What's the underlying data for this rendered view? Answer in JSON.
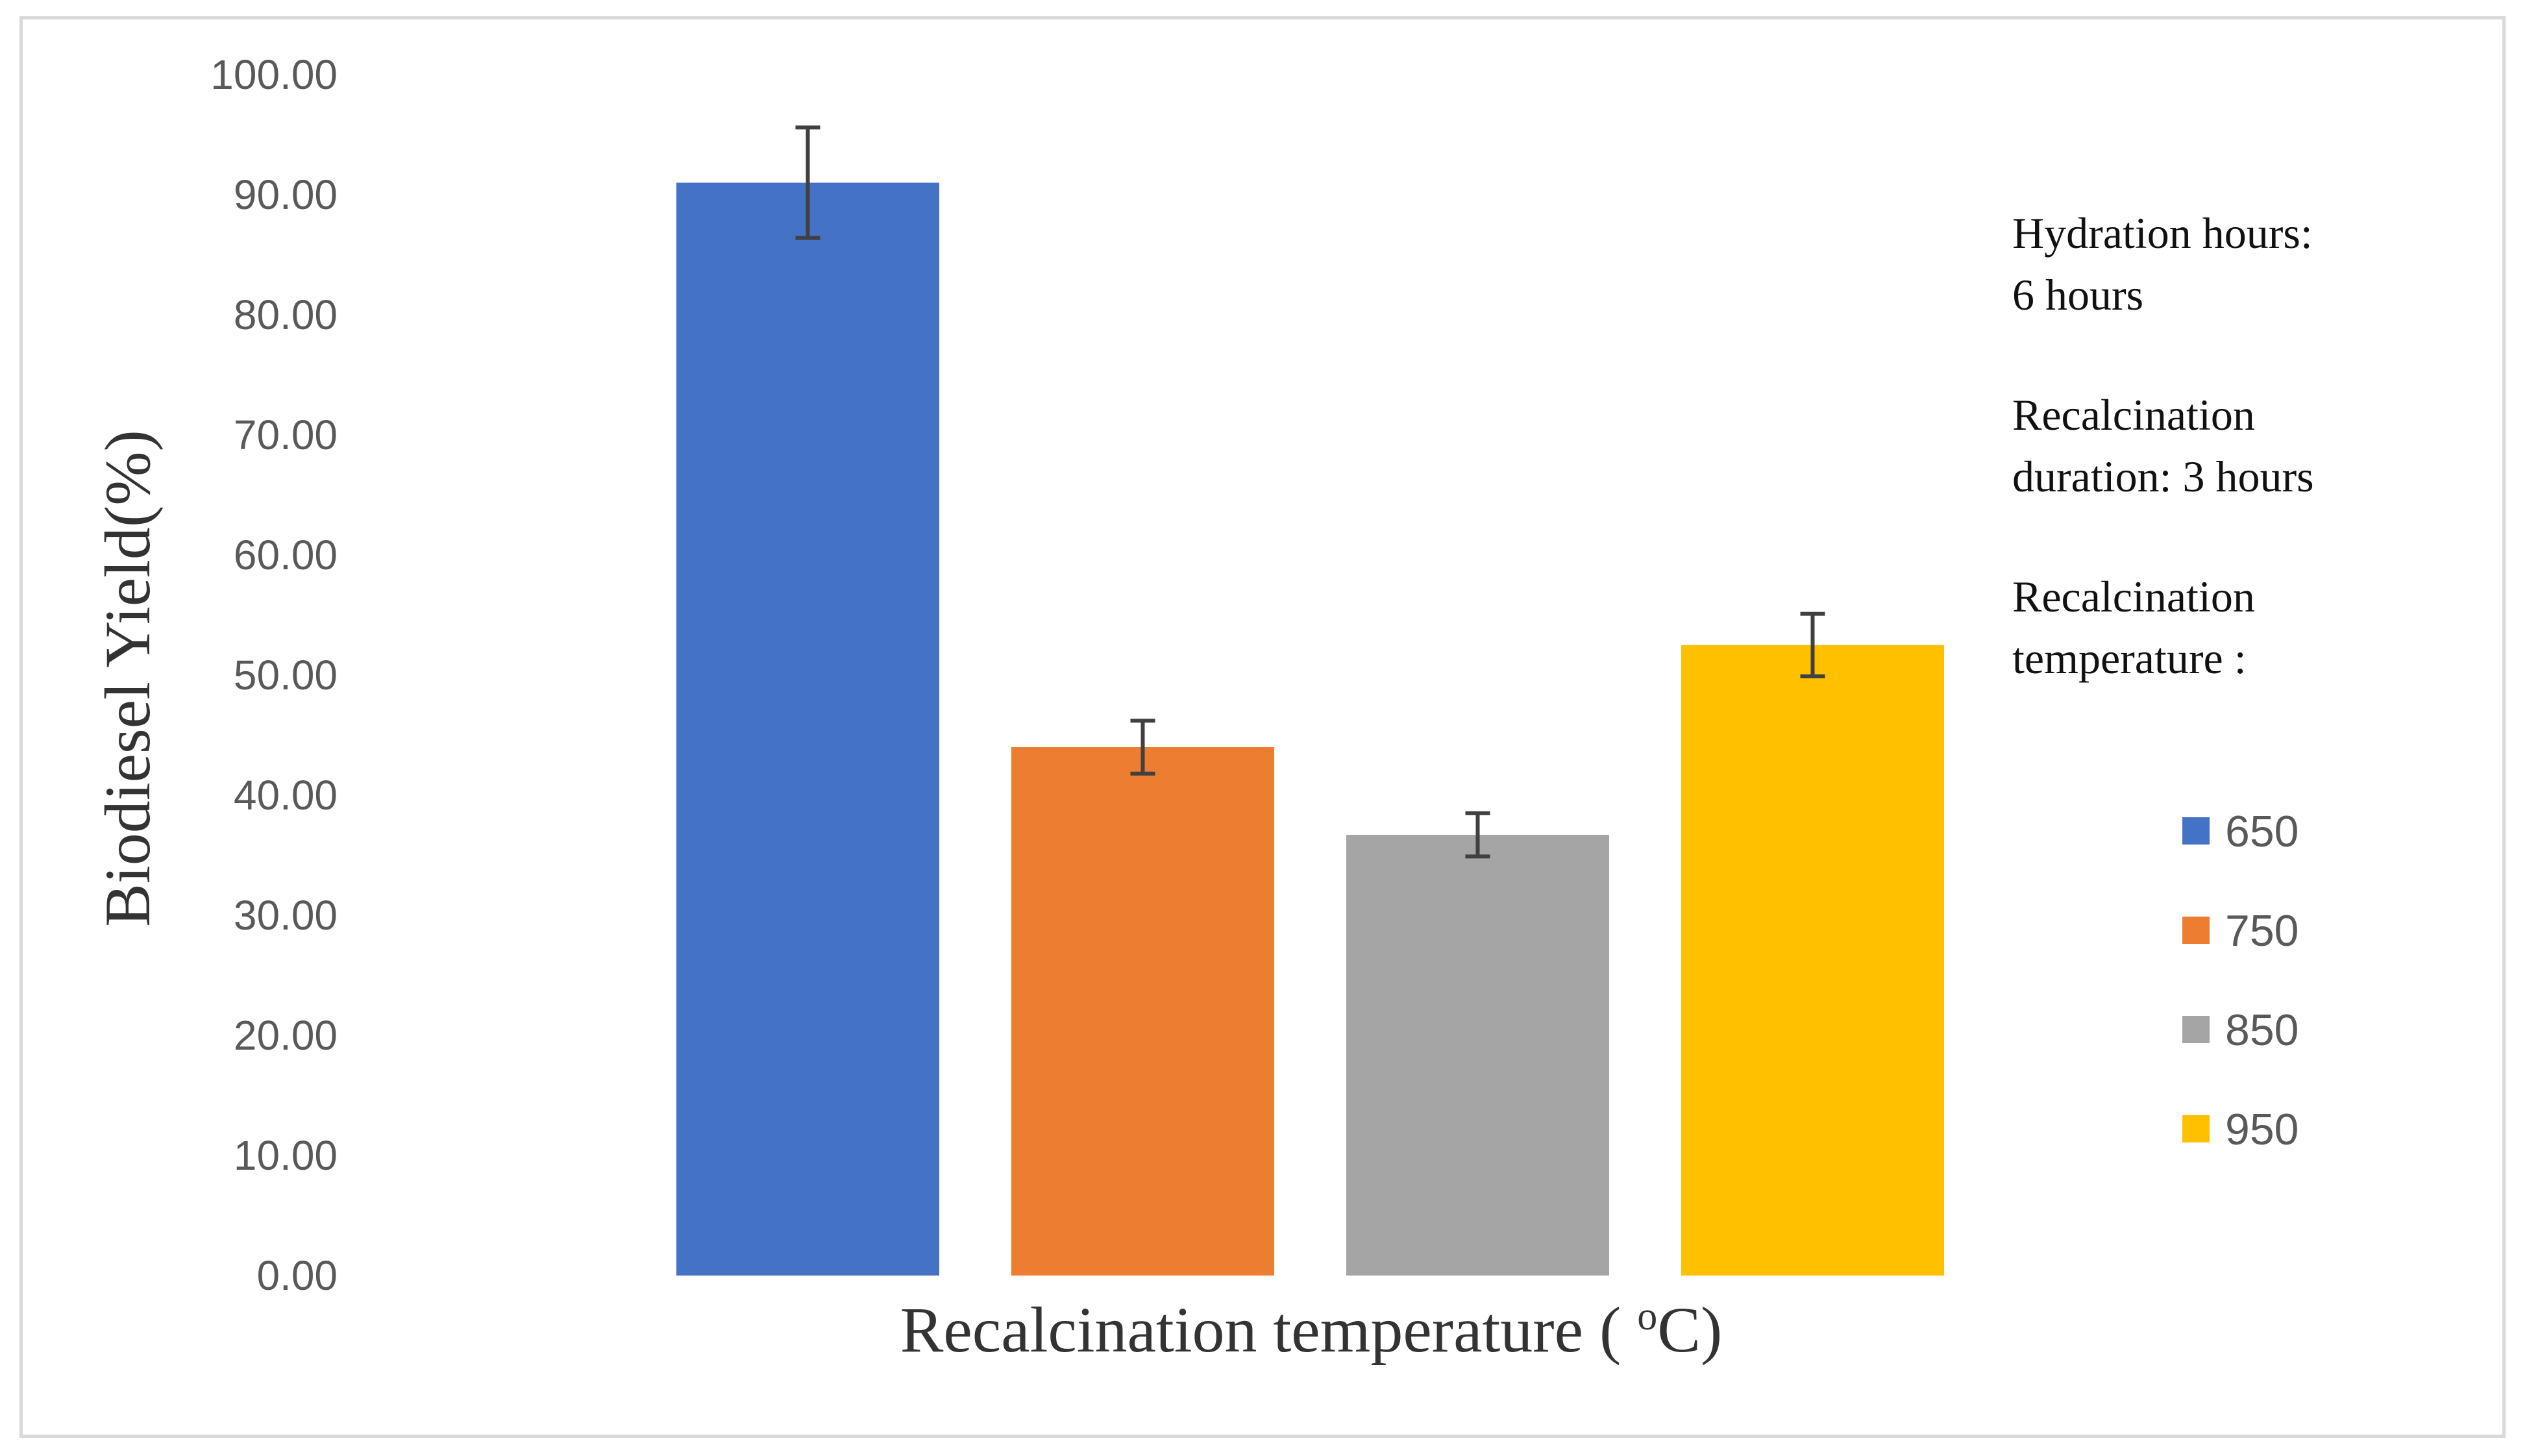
{
  "chart_data": {
    "type": "bar",
    "title": "",
    "xlabel_main": "Recalcination temperature ( ",
    "xlabel_sup": "o",
    "xlabel_end": "C)",
    "ylabel": "Biodiesel Yield(%)",
    "ylim": [
      0,
      100
    ],
    "yticks": [
      "0.00",
      "10.00",
      "20.00",
      "30.00",
      "40.00",
      "50.00",
      "60.00",
      "70.00",
      "80.00",
      "90.00",
      "100.00"
    ],
    "grid": false,
    "legend_position": "right",
    "series": [
      {
        "name": "650",
        "value": 91.0,
        "error": 4.6,
        "color": "#4472C4"
      },
      {
        "name": "750",
        "value": 44.0,
        "error": 2.2,
        "color": "#ED7D31"
      },
      {
        "name": "850",
        "value": 36.7,
        "error": 1.8,
        "color": "#A5A5A5"
      },
      {
        "name": "950",
        "value": 52.5,
        "error": 2.6,
        "color": "#FFC000"
      }
    ],
    "annotation_lines": [
      "Hydration hours:",
      "6 hours",
      "",
      "Recalcination",
      "duration: 3 hours",
      "",
      "Recalcination",
      "temperature :"
    ]
  }
}
